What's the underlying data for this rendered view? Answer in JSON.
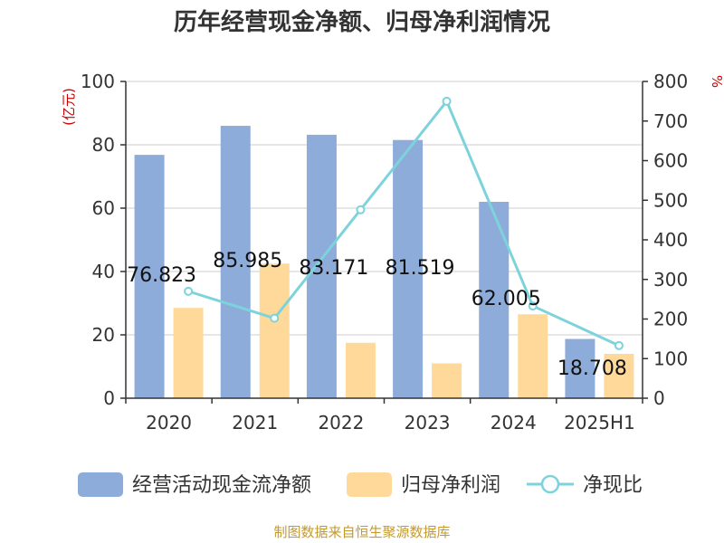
{
  "title": "历年经营现金净额、归母净利润情况",
  "source": "制图数据来自恒生聚源数据库",
  "chart_data": {
    "type": "bar",
    "categories": [
      "2020",
      "2021",
      "2022",
      "2023",
      "2024",
      "2025H1"
    ],
    "series": [
      {
        "name": "经营活动现金流净额",
        "type": "bar",
        "axis": "left",
        "color": "#8eacd9",
        "values": [
          76.823,
          85.985,
          83.171,
          81.519,
          62.005,
          18.708
        ],
        "labels": [
          "76.823",
          "85.985",
          "83.171",
          "81.519",
          "62.005",
          "18.708"
        ]
      },
      {
        "name": "归母净利润",
        "type": "bar",
        "axis": "left",
        "color": "#ffd999",
        "values": [
          28.5,
          42.5,
          17.5,
          11,
          26.5,
          14
        ]
      },
      {
        "name": "净现比",
        "type": "line",
        "axis": "right",
        "color": "#7dd3dc",
        "values": [
          270,
          202,
          476,
          750,
          233,
          133
        ]
      }
    ],
    "y_left": {
      "label": "(亿元)",
      "min": 0,
      "max": 100,
      "ticks": [
        0,
        20,
        40,
        60,
        80,
        100
      ]
    },
    "y_right": {
      "label": "%",
      "min": 0,
      "max": 800,
      "ticks": [
        0,
        100,
        200,
        300,
        400,
        500,
        600,
        700,
        800
      ]
    },
    "grid": true,
    "legend_position": "bottom"
  }
}
